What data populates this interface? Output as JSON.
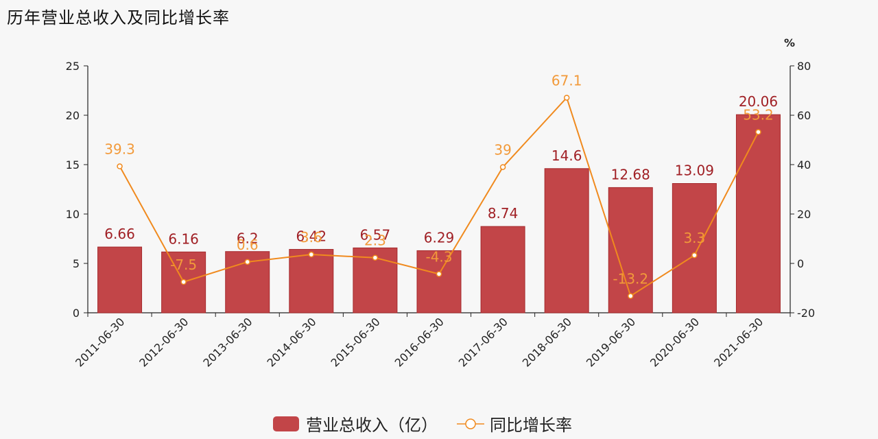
{
  "title": "历年营业总收入及同比增长率",
  "colors": {
    "bar": "#c24548",
    "bar_stroke": "#a52a2d",
    "line": "#f08a1e",
    "bar_label": "#a01f24",
    "line_label": "#f29a3a"
  },
  "legend": {
    "bar_label": "营业总收入（亿）",
    "line_label": "同比增长率"
  },
  "right_axis_unit": "%",
  "chart_data": {
    "type": "bar",
    "title": "历年营业总收入及同比增长率",
    "categories": [
      "2011-06-30",
      "2012-06-30",
      "2013-06-30",
      "2014-06-30",
      "2015-06-30",
      "2016-06-30",
      "2017-06-30",
      "2018-06-30",
      "2019-06-30",
      "2020-06-30",
      "2021-06-30"
    ],
    "series": [
      {
        "name": "营业总收入（亿）",
        "type": "bar",
        "axis": "left",
        "values": [
          6.66,
          6.16,
          6.2,
          6.42,
          6.57,
          6.29,
          8.74,
          14.6,
          12.68,
          13.09,
          20.06
        ]
      },
      {
        "name": "同比增长率",
        "type": "line",
        "axis": "right",
        "values": [
          39.3,
          -7.5,
          0.6,
          3.6,
          2.3,
          -4.3,
          39,
          67.1,
          -13.2,
          3.3,
          53.2
        ]
      }
    ],
    "left_axis": {
      "ylim": [
        0,
        25
      ],
      "ticks": [
        0,
        5,
        10,
        15,
        20,
        25
      ]
    },
    "right_axis": {
      "label": "%",
      "ylim": [
        -20,
        80
      ],
      "ticks": [
        -20,
        0,
        20,
        40,
        60,
        80
      ]
    },
    "xlabel": "",
    "ylabel": "",
    "grid": false,
    "legend_position": "bottom"
  }
}
